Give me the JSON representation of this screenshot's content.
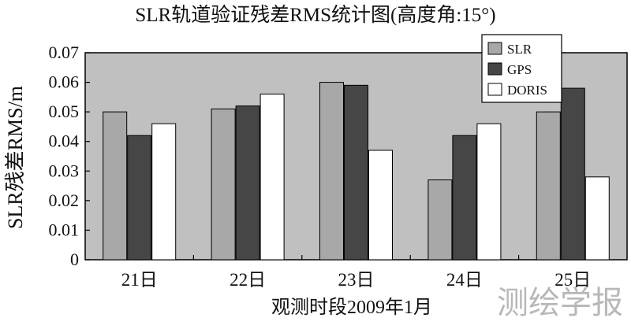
{
  "chart_data": {
    "type": "bar",
    "title": "SLR轨道验证残差RMS统计图(高度角:15°)",
    "xlabel": "观测时段2009年1月",
    "ylabel": "SLR残差RMS/m",
    "categories": [
      "21日",
      "22日",
      "23日",
      "24日",
      "25日"
    ],
    "ylim": [
      0,
      0.07
    ],
    "yticks": [
      "0",
      "0.01",
      "0.02",
      "0.03",
      "0.04",
      "0.05",
      "0.06",
      "0.07"
    ],
    "grid": false,
    "legend_position": "top-right",
    "series": [
      {
        "name": "SLR",
        "color": "#a8a8a8",
        "values": [
          0.05,
          0.051,
          0.06,
          0.027,
          0.05
        ]
      },
      {
        "name": "GPS",
        "color": "#464646",
        "values": [
          0.042,
          0.052,
          0.059,
          0.042,
          0.058
        ]
      },
      {
        "name": "DORIS",
        "color": "#ffffff",
        "values": [
          0.046,
          0.056,
          0.037,
          0.046,
          0.028
        ]
      }
    ],
    "plot_background": "#c0c0c0"
  },
  "watermark": "测绘学报"
}
